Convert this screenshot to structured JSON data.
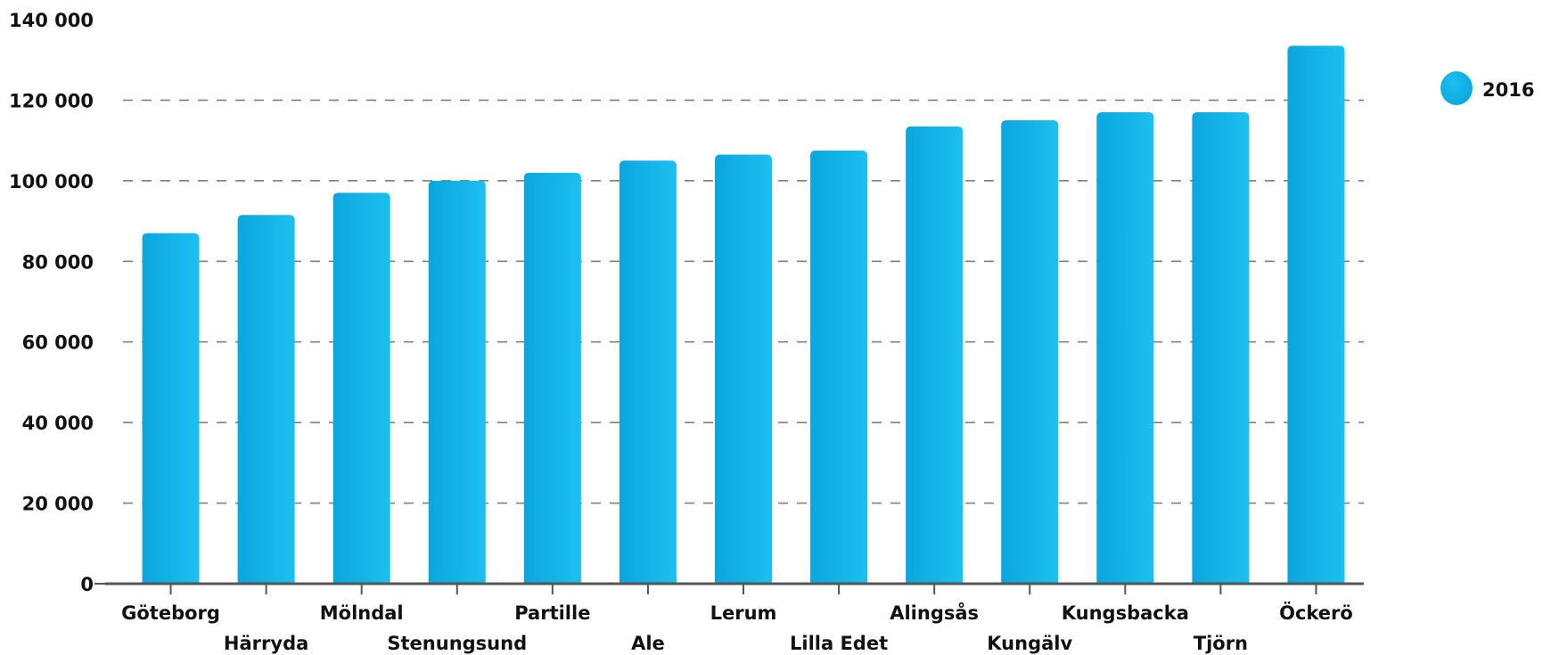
{
  "chart_data": {
    "type": "bar",
    "categories": [
      "Göteborg",
      "Härryda",
      "Mölndal",
      "Stenungsund",
      "Partille",
      "Ale",
      "Lerum",
      "Lilla Edet",
      "Alingsås",
      "Kungälv",
      "Kungsbacka",
      "Tjörn",
      "Öckerö"
    ],
    "series": [
      {
        "name": "2016",
        "values": [
          87000,
          91500,
          97000,
          100000,
          102000,
          105000,
          106500,
          107500,
          113500,
          115000,
          117000,
          117000,
          133500
        ]
      }
    ],
    "title": "",
    "xlabel": "",
    "ylabel": "",
    "ylim": [
      0,
      140000
    ],
    "yticks": [
      0,
      20000,
      40000,
      60000,
      80000,
      100000,
      120000,
      140000
    ],
    "ytick_labels": [
      "0",
      "20 000",
      "40 000",
      "60 000",
      "80 000",
      "100 000",
      "120 000",
      "140 000"
    ],
    "grid": true,
    "legend_position": "top-right",
    "bar_color": "#0aa6df",
    "bar_color_light": "#1cc0ef"
  }
}
